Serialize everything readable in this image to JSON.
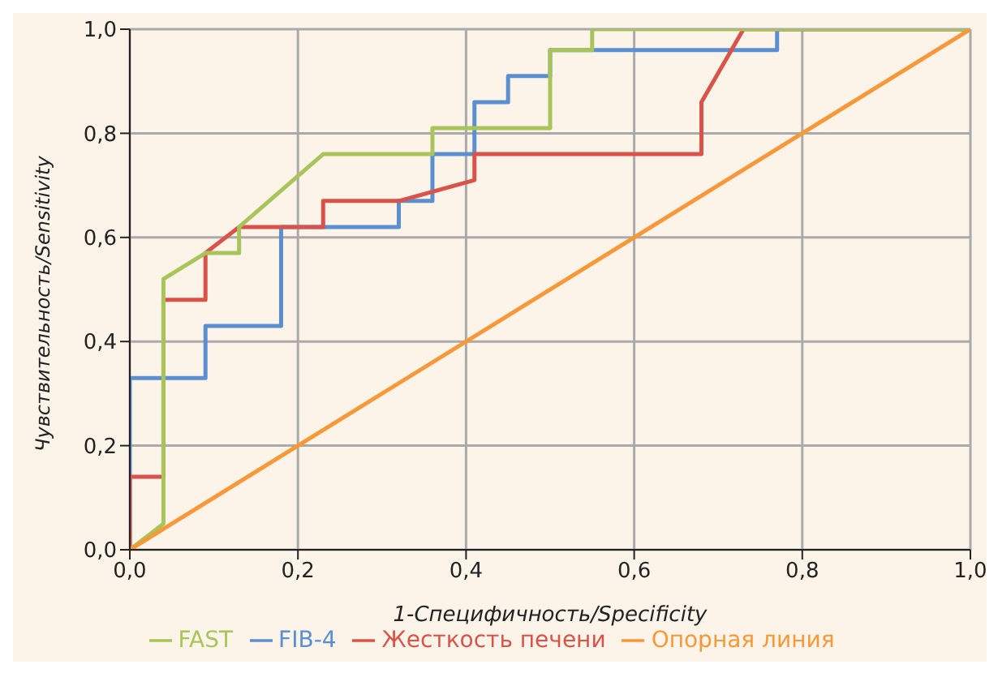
{
  "chart_data": {
    "type": "line",
    "xlabel": "1-Специфичность/Specificity",
    "ylabel": "Чувствительность/Sensitivity",
    "xlim": [
      0,
      1
    ],
    "ylim": [
      0,
      1
    ],
    "xticks": [
      {
        "value": 0,
        "label": "0,0"
      },
      {
        "value": 0.2,
        "label": "0,2"
      },
      {
        "value": 0.4,
        "label": "0,4"
      },
      {
        "value": 0.6,
        "label": "0,6"
      },
      {
        "value": 0.8,
        "label": "0,8"
      },
      {
        "value": 1,
        "label": "1,0"
      }
    ],
    "yticks": [
      {
        "value": 0,
        "label": "0,0"
      },
      {
        "value": 0.2,
        "label": "0,2"
      },
      {
        "value": 0.4,
        "label": "0,4"
      },
      {
        "value": 0.6,
        "label": "0,6"
      },
      {
        "value": 0.8,
        "label": "0,8"
      },
      {
        "value": 1,
        "label": "1,0"
      }
    ],
    "grid": true,
    "legend": "bottom",
    "marker": "none",
    "line_style": "solid",
    "series": [
      {
        "name": "FIB-4",
        "color": "#5b8fd0",
        "x": [
          0,
          0,
          0.09,
          0.09,
          0.18,
          0.18,
          0.32,
          0.32,
          0.36,
          0.36,
          0.41,
          0.41,
          0.45,
          0.45,
          0.5,
          0.5,
          0.77,
          0.77,
          1
        ],
        "values": [
          0,
          0.33,
          0.33,
          0.43,
          0.43,
          0.62,
          0.62,
          0.67,
          0.67,
          0.76,
          0.76,
          0.86,
          0.86,
          0.91,
          0.91,
          0.96,
          0.96,
          1,
          1
        ]
      },
      {
        "name": "Жесткость печени",
        "color": "#d9534a",
        "x": [
          0,
          0,
          0.04,
          0.04,
          0.09,
          0.09,
          0.13,
          0.23,
          0.23,
          0.32,
          0.41,
          0.41,
          0.68,
          0.68,
          0.73,
          1
        ],
        "values": [
          0,
          0.14,
          0.14,
          0.48,
          0.48,
          0.57,
          0.62,
          0.62,
          0.67,
          0.67,
          0.71,
          0.76,
          0.76,
          0.86,
          1,
          1
        ]
      },
      {
        "name": "FAST",
        "color": "#a8c45a",
        "x": [
          0,
          0.04,
          0.04,
          0.09,
          0.13,
          0.13,
          0.23,
          0.36,
          0.36,
          0.5,
          0.5,
          0.55,
          0.55,
          1
        ],
        "values": [
          0,
          0.05,
          0.52,
          0.57,
          0.57,
          0.62,
          0.76,
          0.76,
          0.81,
          0.81,
          0.96,
          0.96,
          1,
          1
        ]
      },
      {
        "name": "Опорная линия",
        "color": "#f7993a",
        "x": [
          0,
          1
        ],
        "values": [
          0,
          1
        ]
      }
    ]
  }
}
